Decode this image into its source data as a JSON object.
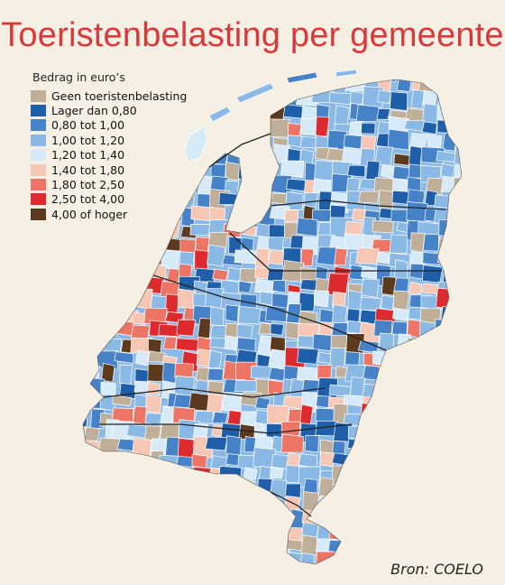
{
  "title": "Toeristenbelasting per gemeente",
  "legend": {
    "title": "Bedrag in euro’s",
    "items": [
      {
        "label": "Geen toeristenbelasting",
        "color": "#bfae98"
      },
      {
        "label": "Lager dan 0,80",
        "color": "#1f5ea8"
      },
      {
        "label": "0,80 tot 1,00",
        "color": "#4682c8"
      },
      {
        "label": "1,00 tot 1,20",
        "color": "#8bb9e6"
      },
      {
        "label": "1,20 tot 1,40",
        "color": "#d6ebf7"
      },
      {
        "label": "1,40 tot 1,80",
        "color": "#f7c7b5"
      },
      {
        "label": "1,80 tot 2,50",
        "color": "#ed7565"
      },
      {
        "label": "2,50 tot 4,00",
        "color": "#dd2a2e"
      },
      {
        "label": "4,00 of hoger",
        "color": "#5c3a1e"
      }
    ]
  },
  "source": "Bron: COELO"
}
